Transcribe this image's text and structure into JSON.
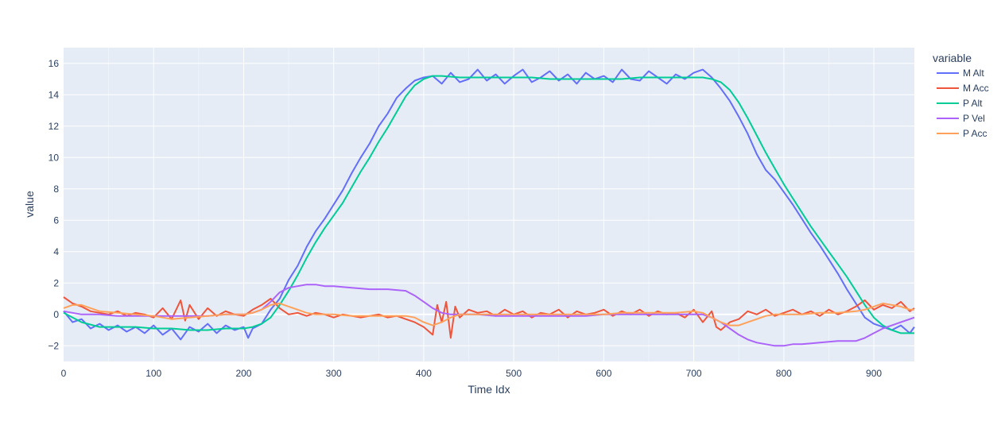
{
  "chart_data": {
    "type": "line",
    "xlabel": "Time Idx",
    "ylabel": "value",
    "xlim": [
      0,
      945
    ],
    "ylim": [
      -3,
      17
    ],
    "xticks": [
      0,
      100,
      200,
      300,
      400,
      500,
      600,
      700,
      800,
      900
    ],
    "yticks": [
      -2,
      0,
      2,
      4,
      6,
      8,
      10,
      12,
      14,
      16
    ],
    "grid": true,
    "legend": {
      "title": "variable",
      "position": "right"
    },
    "background": "#e5ecf6",
    "series": [
      {
        "name": "M Alt",
        "color": "#636efa",
        "x": [
          0,
          10,
          20,
          30,
          40,
          50,
          60,
          70,
          80,
          90,
          100,
          110,
          120,
          130,
          140,
          150,
          160,
          170,
          180,
          190,
          200,
          205,
          210,
          220,
          230,
          240,
          250,
          260,
          270,
          280,
          290,
          300,
          310,
          320,
          330,
          340,
          350,
          360,
          370,
          380,
          390,
          400,
          410,
          420,
          430,
          440,
          450,
          460,
          470,
          480,
          490,
          500,
          510,
          520,
          530,
          540,
          550,
          560,
          570,
          580,
          590,
          600,
          610,
          620,
          630,
          640,
          650,
          660,
          670,
          680,
          690,
          700,
          710,
          720,
          730,
          740,
          750,
          760,
          770,
          780,
          790,
          800,
          810,
          820,
          830,
          840,
          850,
          860,
          870,
          880,
          890,
          900,
          910,
          920,
          930,
          940,
          945
        ],
        "y": [
          0.2,
          -0.5,
          -0.3,
          -0.9,
          -0.6,
          -1.0,
          -0.7,
          -1.1,
          -0.8,
          -1.2,
          -0.7,
          -1.3,
          -0.9,
          -1.6,
          -0.8,
          -1.1,
          -0.6,
          -1.2,
          -0.7,
          -1.0,
          -0.8,
          -1.5,
          -0.9,
          -0.6,
          0.3,
          1.0,
          2.2,
          3.1,
          4.3,
          5.3,
          6.1,
          7.0,
          7.9,
          9.0,
          10.0,
          10.9,
          12.0,
          12.8,
          13.8,
          14.4,
          14.9,
          15.1,
          15.2,
          14.7,
          15.4,
          14.8,
          15.0,
          15.6,
          14.9,
          15.3,
          14.7,
          15.2,
          15.6,
          14.8,
          15.1,
          15.5,
          14.9,
          15.3,
          14.7,
          15.4,
          15.0,
          15.2,
          14.8,
          15.6,
          15.0,
          14.9,
          15.5,
          15.1,
          14.7,
          15.3,
          15.0,
          15.4,
          15.6,
          15.1,
          14.4,
          13.6,
          12.6,
          11.5,
          10.2,
          9.2,
          8.6,
          7.8,
          7.0,
          6.1,
          5.2,
          4.4,
          3.5,
          2.6,
          1.6,
          0.7,
          -0.2,
          -0.6,
          -0.8,
          -1.0,
          -0.7,
          -1.2,
          -0.8
        ]
      },
      {
        "name": "M Acc",
        "color": "#ef553b",
        "x": [
          0,
          10,
          20,
          30,
          40,
          50,
          60,
          70,
          80,
          90,
          100,
          110,
          120,
          130,
          135,
          140,
          150,
          160,
          170,
          180,
          190,
          200,
          210,
          220,
          230,
          240,
          250,
          260,
          270,
          280,
          290,
          300,
          310,
          320,
          330,
          340,
          350,
          360,
          370,
          380,
          390,
          400,
          410,
          415,
          420,
          425,
          430,
          435,
          440,
          450,
          460,
          470,
          480,
          490,
          500,
          510,
          520,
          530,
          540,
          550,
          560,
          570,
          580,
          590,
          600,
          610,
          620,
          630,
          640,
          650,
          660,
          670,
          680,
          690,
          700,
          710,
          720,
          725,
          730,
          740,
          750,
          760,
          770,
          780,
          790,
          800,
          810,
          820,
          830,
          840,
          850,
          860,
          870,
          880,
          890,
          900,
          910,
          920,
          930,
          940,
          945
        ],
        "y": [
          1.1,
          0.7,
          0.5,
          0.2,
          0.1,
          0.0,
          0.2,
          -0.1,
          0.1,
          0.0,
          -0.2,
          0.4,
          -0.3,
          0.9,
          -0.4,
          0.6,
          -0.3,
          0.4,
          -0.1,
          0.2,
          0.0,
          -0.1,
          0.3,
          0.6,
          1.0,
          0.4,
          0.0,
          0.1,
          -0.1,
          0.1,
          0.0,
          -0.2,
          0.0,
          -0.1,
          -0.2,
          -0.1,
          0.0,
          -0.2,
          -0.1,
          -0.3,
          -0.5,
          -0.8,
          -1.3,
          0.6,
          -0.5,
          0.8,
          -1.5,
          0.5,
          -0.2,
          0.3,
          0.1,
          0.2,
          -0.1,
          0.3,
          0.0,
          0.2,
          -0.2,
          0.1,
          0.0,
          0.3,
          -0.2,
          0.2,
          0.0,
          0.1,
          0.3,
          -0.1,
          0.2,
          0.0,
          0.3,
          -0.1,
          0.2,
          0.0,
          0.1,
          -0.2,
          0.3,
          -0.5,
          0.2,
          -0.8,
          -1.0,
          -0.5,
          -0.3,
          0.2,
          0.0,
          0.3,
          -0.1,
          0.1,
          0.3,
          0.0,
          0.2,
          -0.1,
          0.3,
          0.0,
          0.2,
          0.5,
          0.9,
          0.3,
          0.6,
          0.4,
          0.8,
          0.2,
          0.4
        ]
      },
      {
        "name": "P Alt",
        "color": "#00cc96",
        "x": [
          0,
          20,
          40,
          60,
          80,
          100,
          120,
          140,
          160,
          180,
          200,
          210,
          220,
          230,
          240,
          250,
          260,
          270,
          280,
          290,
          300,
          310,
          320,
          330,
          340,
          350,
          360,
          370,
          380,
          390,
          400,
          410,
          420,
          440,
          460,
          480,
          500,
          520,
          540,
          560,
          580,
          600,
          620,
          640,
          660,
          680,
          700,
          710,
          720,
          730,
          740,
          750,
          760,
          770,
          780,
          790,
          800,
          810,
          820,
          830,
          840,
          850,
          860,
          870,
          880,
          890,
          900,
          910,
          920,
          930,
          940,
          945
        ],
        "y": [
          0.1,
          -0.5,
          -0.8,
          -0.8,
          -0.8,
          -0.9,
          -0.9,
          -1.0,
          -1.0,
          -0.9,
          -0.9,
          -0.8,
          -0.6,
          -0.2,
          0.6,
          1.5,
          2.5,
          3.6,
          4.6,
          5.5,
          6.3,
          7.1,
          8.1,
          9.1,
          10.0,
          11.0,
          11.9,
          12.9,
          13.9,
          14.6,
          15.0,
          15.2,
          15.2,
          15.1,
          15.1,
          15.1,
          15.1,
          15.1,
          15.0,
          15.0,
          15.0,
          15.0,
          15.0,
          15.1,
          15.1,
          15.1,
          15.1,
          15.1,
          15.0,
          14.8,
          14.3,
          13.5,
          12.5,
          11.4,
          10.3,
          9.3,
          8.3,
          7.4,
          6.5,
          5.6,
          4.8,
          4.0,
          3.2,
          2.4,
          1.5,
          0.6,
          -0.2,
          -0.7,
          -1.0,
          -1.2,
          -1.2,
          -1.2
        ]
      },
      {
        "name": "P Vel",
        "color": "#ab63fa",
        "x": [
          0,
          20,
          40,
          60,
          80,
          100,
          120,
          140,
          160,
          180,
          200,
          210,
          220,
          230,
          240,
          250,
          260,
          270,
          280,
          290,
          300,
          320,
          340,
          360,
          380,
          390,
          400,
          410,
          420,
          430,
          440,
          460,
          480,
          500,
          520,
          540,
          560,
          580,
          600,
          620,
          640,
          660,
          680,
          700,
          710,
          720,
          730,
          740,
          750,
          760,
          770,
          780,
          790,
          800,
          810,
          820,
          840,
          860,
          880,
          890,
          900,
          910,
          920,
          930,
          940,
          945
        ],
        "y": [
          0.2,
          0.0,
          0.0,
          -0.1,
          -0.1,
          -0.1,
          -0.1,
          -0.1,
          -0.1,
          0.0,
          0.0,
          0.1,
          0.3,
          0.8,
          1.4,
          1.7,
          1.8,
          1.9,
          1.9,
          1.8,
          1.8,
          1.7,
          1.6,
          1.6,
          1.5,
          1.2,
          0.8,
          0.4,
          0.1,
          0.0,
          0.0,
          0.0,
          -0.1,
          -0.1,
          -0.1,
          -0.1,
          -0.1,
          -0.1,
          0.0,
          0.0,
          0.0,
          0.0,
          0.0,
          0.0,
          0.0,
          -0.2,
          -0.5,
          -0.9,
          -1.3,
          -1.6,
          -1.8,
          -1.9,
          -2.0,
          -2.0,
          -1.9,
          -1.9,
          -1.8,
          -1.7,
          -1.7,
          -1.5,
          -1.2,
          -0.9,
          -0.7,
          -0.5,
          -0.3,
          -0.2
        ]
      },
      {
        "name": "P Acc",
        "color": "#ffa15a",
        "x": [
          0,
          10,
          20,
          30,
          40,
          60,
          80,
          100,
          110,
          120,
          140,
          160,
          180,
          200,
          210,
          220,
          230,
          240,
          250,
          260,
          270,
          280,
          300,
          320,
          340,
          360,
          380,
          390,
          400,
          410,
          420,
          430,
          440,
          460,
          480,
          500,
          520,
          540,
          560,
          580,
          600,
          620,
          640,
          660,
          680,
          700,
          710,
          720,
          730,
          740,
          750,
          760,
          770,
          780,
          790,
          800,
          820,
          840,
          860,
          880,
          890,
          900,
          910,
          920,
          930,
          940,
          945
        ],
        "y": [
          0.4,
          0.6,
          0.6,
          0.4,
          0.2,
          0.1,
          0.0,
          -0.1,
          -0.2,
          -0.3,
          -0.2,
          -0.1,
          0.0,
          0.0,
          0.1,
          0.3,
          0.6,
          0.7,
          0.5,
          0.3,
          0.1,
          0.0,
          0.0,
          -0.1,
          -0.1,
          -0.1,
          -0.1,
          -0.2,
          -0.5,
          -0.7,
          -0.5,
          -0.2,
          0.0,
          0.0,
          0.0,
          0.0,
          0.0,
          0.0,
          0.0,
          0.0,
          0.0,
          0.1,
          0.1,
          0.1,
          0.1,
          0.2,
          0.1,
          -0.2,
          -0.5,
          -0.7,
          -0.7,
          -0.5,
          -0.3,
          -0.1,
          0.0,
          0.0,
          0.0,
          0.1,
          0.1,
          0.2,
          0.3,
          0.5,
          0.7,
          0.6,
          0.5,
          0.3,
          0.3
        ]
      }
    ]
  }
}
